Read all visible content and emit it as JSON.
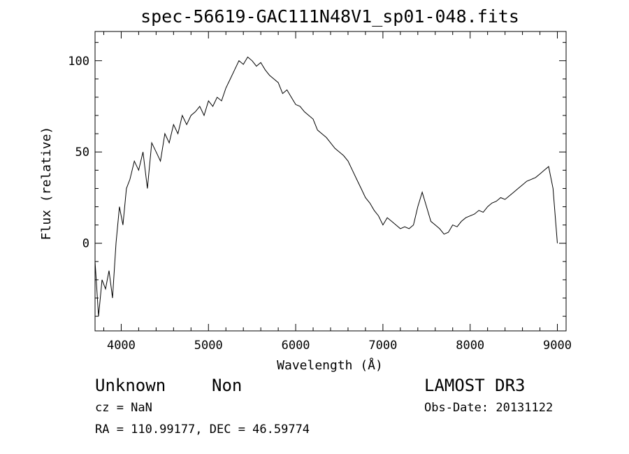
{
  "chart_data": {
    "type": "line",
    "title": "spec-56619-GAC111N48V1_sp01-048.fits",
    "xlabel": "Wavelength (Å)",
    "ylabel": "Flux (relative)",
    "xlim": [
      3700,
      9100
    ],
    "ylim": [
      -48,
      116
    ],
    "xticks": [
      4000,
      5000,
      6000,
      7000,
      8000,
      9000
    ],
    "yticks": [
      0,
      50,
      100
    ],
    "xtick_labels": [
      "4000",
      "5000",
      "6000",
      "7000",
      "8000",
      "9000"
    ],
    "ytick_labels": [
      "0",
      "50",
      "100"
    ],
    "grid": false,
    "series": [
      {
        "color": "#000000",
        "x": [
          3700,
          3740,
          3780,
          3820,
          3860,
          3900,
          3940,
          3980,
          4020,
          4060,
          4100,
          4150,
          4200,
          4250,
          4300,
          4350,
          4400,
          4450,
          4500,
          4550,
          4600,
          4650,
          4700,
          4750,
          4800,
          4850,
          4900,
          4950,
          5000,
          5050,
          5100,
          5150,
          5200,
          5250,
          5300,
          5350,
          5400,
          5450,
          5500,
          5550,
          5600,
          5650,
          5700,
          5750,
          5800,
          5850,
          5900,
          5950,
          6000,
          6050,
          6100,
          6150,
          6200,
          6250,
          6300,
          6350,
          6400,
          6450,
          6500,
          6550,
          6600,
          6650,
          6700,
          6750,
          6800,
          6850,
          6900,
          6950,
          7000,
          7050,
          7100,
          7150,
          7200,
          7250,
          7300,
          7350,
          7400,
          7450,
          7500,
          7550,
          7600,
          7650,
          7700,
          7750,
          7800,
          7850,
          7900,
          7950,
          8000,
          8050,
          8100,
          8150,
          8200,
          8250,
          8300,
          8350,
          8400,
          8450,
          8500,
          8550,
          8600,
          8650,
          8700,
          8750,
          8800,
          8850,
          8900,
          8950,
          9000
        ],
        "y": [
          -10,
          -40,
          -20,
          -25,
          -15,
          -30,
          0,
          20,
          10,
          30,
          35,
          45,
          40,
          50,
          30,
          55,
          50,
          45,
          60,
          55,
          65,
          60,
          70,
          65,
          70,
          72,
          75,
          70,
          78,
          75,
          80,
          78,
          85,
          90,
          95,
          100,
          98,
          102,
          100,
          97,
          99,
          95,
          92,
          90,
          88,
          82,
          84,
          80,
          76,
          75,
          72,
          70,
          68,
          62,
          60,
          58,
          55,
          52,
          50,
          48,
          45,
          40,
          35,
          30,
          25,
          22,
          18,
          15,
          10,
          14,
          12,
          10,
          8,
          9,
          8,
          10,
          20,
          28,
          20,
          12,
          10,
          8,
          5,
          6,
          10,
          9,
          12,
          14,
          15,
          16,
          18,
          17,
          20,
          22,
          23,
          25,
          24,
          26,
          28,
          30,
          32,
          34,
          35,
          36,
          38,
          40,
          42,
          30,
          0
        ]
      }
    ]
  },
  "annotations": {
    "object_class": "Unknown",
    "object_subclass": "Non",
    "survey": "LAMOST DR3",
    "redshift": "cz = NaN",
    "obs_date": "Obs-Date: 20131122",
    "coords": "RA = 110.99177, DEC =  46.59774"
  }
}
